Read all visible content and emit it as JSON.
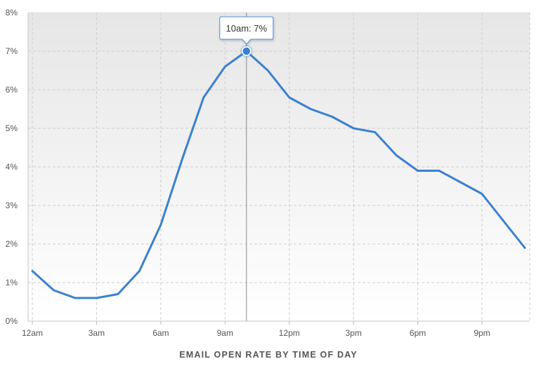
{
  "chart_data": {
    "type": "area",
    "title": "",
    "xlabel": "EMAIL OPEN RATE BY TIME OF DAY",
    "ylabel": "",
    "x_hours": [
      0,
      1,
      2,
      3,
      4,
      5,
      6,
      7,
      8,
      9,
      10,
      11,
      12,
      13,
      14,
      15,
      16,
      17,
      18,
      19,
      20,
      21,
      22,
      23
    ],
    "series": [
      {
        "values": [
          1.3,
          0.8,
          0.6,
          0.6,
          0.7,
          1.3,
          2.5,
          4.2,
          5.8,
          6.6,
          7.0,
          6.5,
          5.8,
          5.5,
          5.3,
          5.0,
          4.9,
          4.3,
          3.9,
          3.9,
          3.6,
          3.3,
          2.6,
          1.9
        ]
      }
    ],
    "x_ticks": [
      {
        "hour": 0,
        "label": "12am"
      },
      {
        "hour": 3,
        "label": "3am"
      },
      {
        "hour": 6,
        "label": "6am"
      },
      {
        "hour": 9,
        "label": "9am"
      },
      {
        "hour": 12,
        "label": "12pm"
      },
      {
        "hour": 15,
        "label": "3pm"
      },
      {
        "hour": 18,
        "label": "6pm"
      },
      {
        "hour": 21,
        "label": "9pm"
      }
    ],
    "y_ticks": [
      {
        "value": 0,
        "label": "0%"
      },
      {
        "value": 1,
        "label": "1%"
      },
      {
        "value": 2,
        "label": "2%"
      },
      {
        "value": 3,
        "label": "3%"
      },
      {
        "value": 4,
        "label": "4%"
      },
      {
        "value": 5,
        "label": "5%"
      },
      {
        "value": 6,
        "label": "6%"
      },
      {
        "value": 7,
        "label": "7%"
      },
      {
        "value": 8,
        "label": "8%"
      }
    ],
    "xlim": [
      0,
      23
    ],
    "ylim": [
      0,
      8
    ],
    "grid": true,
    "legend": "none",
    "highlight": {
      "hour": 10,
      "value": 7,
      "label": "10am: 7%"
    },
    "colors": {
      "line": "#3a80d0",
      "grid": "#cfcfcf",
      "background_top": "#e6e6e6",
      "background_bottom": "#ffffff",
      "crosshair": "#8a8a8a",
      "tooltip_border": "#4a8fd8"
    }
  }
}
